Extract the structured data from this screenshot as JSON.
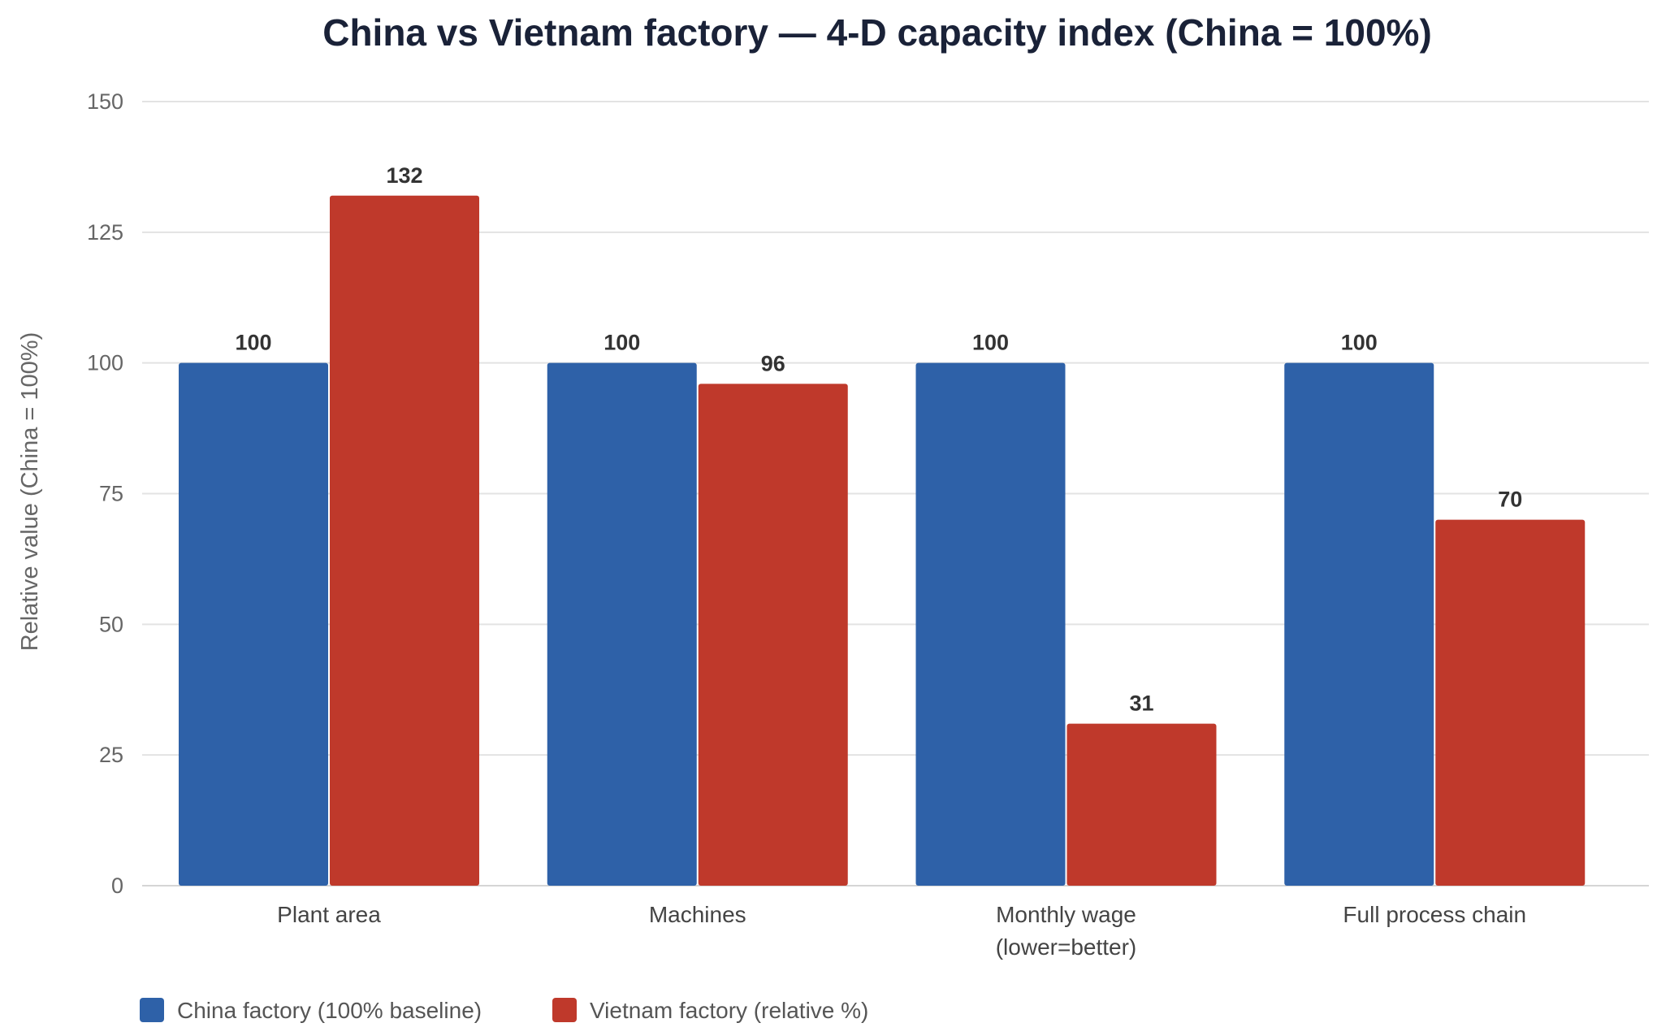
{
  "chart_data": {
    "type": "bar",
    "title": "China vs Vietnam factory — 4-D capacity index (China = 100%)",
    "xlabel": "",
    "ylabel": "Relative value (China = 100%)",
    "ylim": [
      0,
      150
    ],
    "yticks": [
      0,
      25,
      50,
      75,
      100,
      125,
      150
    ],
    "grid": true,
    "legend_position": "bottom-left",
    "categories": [
      [
        "Plant area"
      ],
      [
        "Machines"
      ],
      [
        "Monthly wage",
        "(lower=better)"
      ],
      [
        "Full process chain"
      ]
    ],
    "series": [
      {
        "name": "China factory (100% baseline)",
        "color": "#2e61a8",
        "values": [
          100,
          100,
          100,
          100
        ]
      },
      {
        "name": "Vietnam factory (relative %)",
        "color": "#bf392b",
        "values": [
          132,
          96,
          31,
          70
        ]
      }
    ]
  }
}
